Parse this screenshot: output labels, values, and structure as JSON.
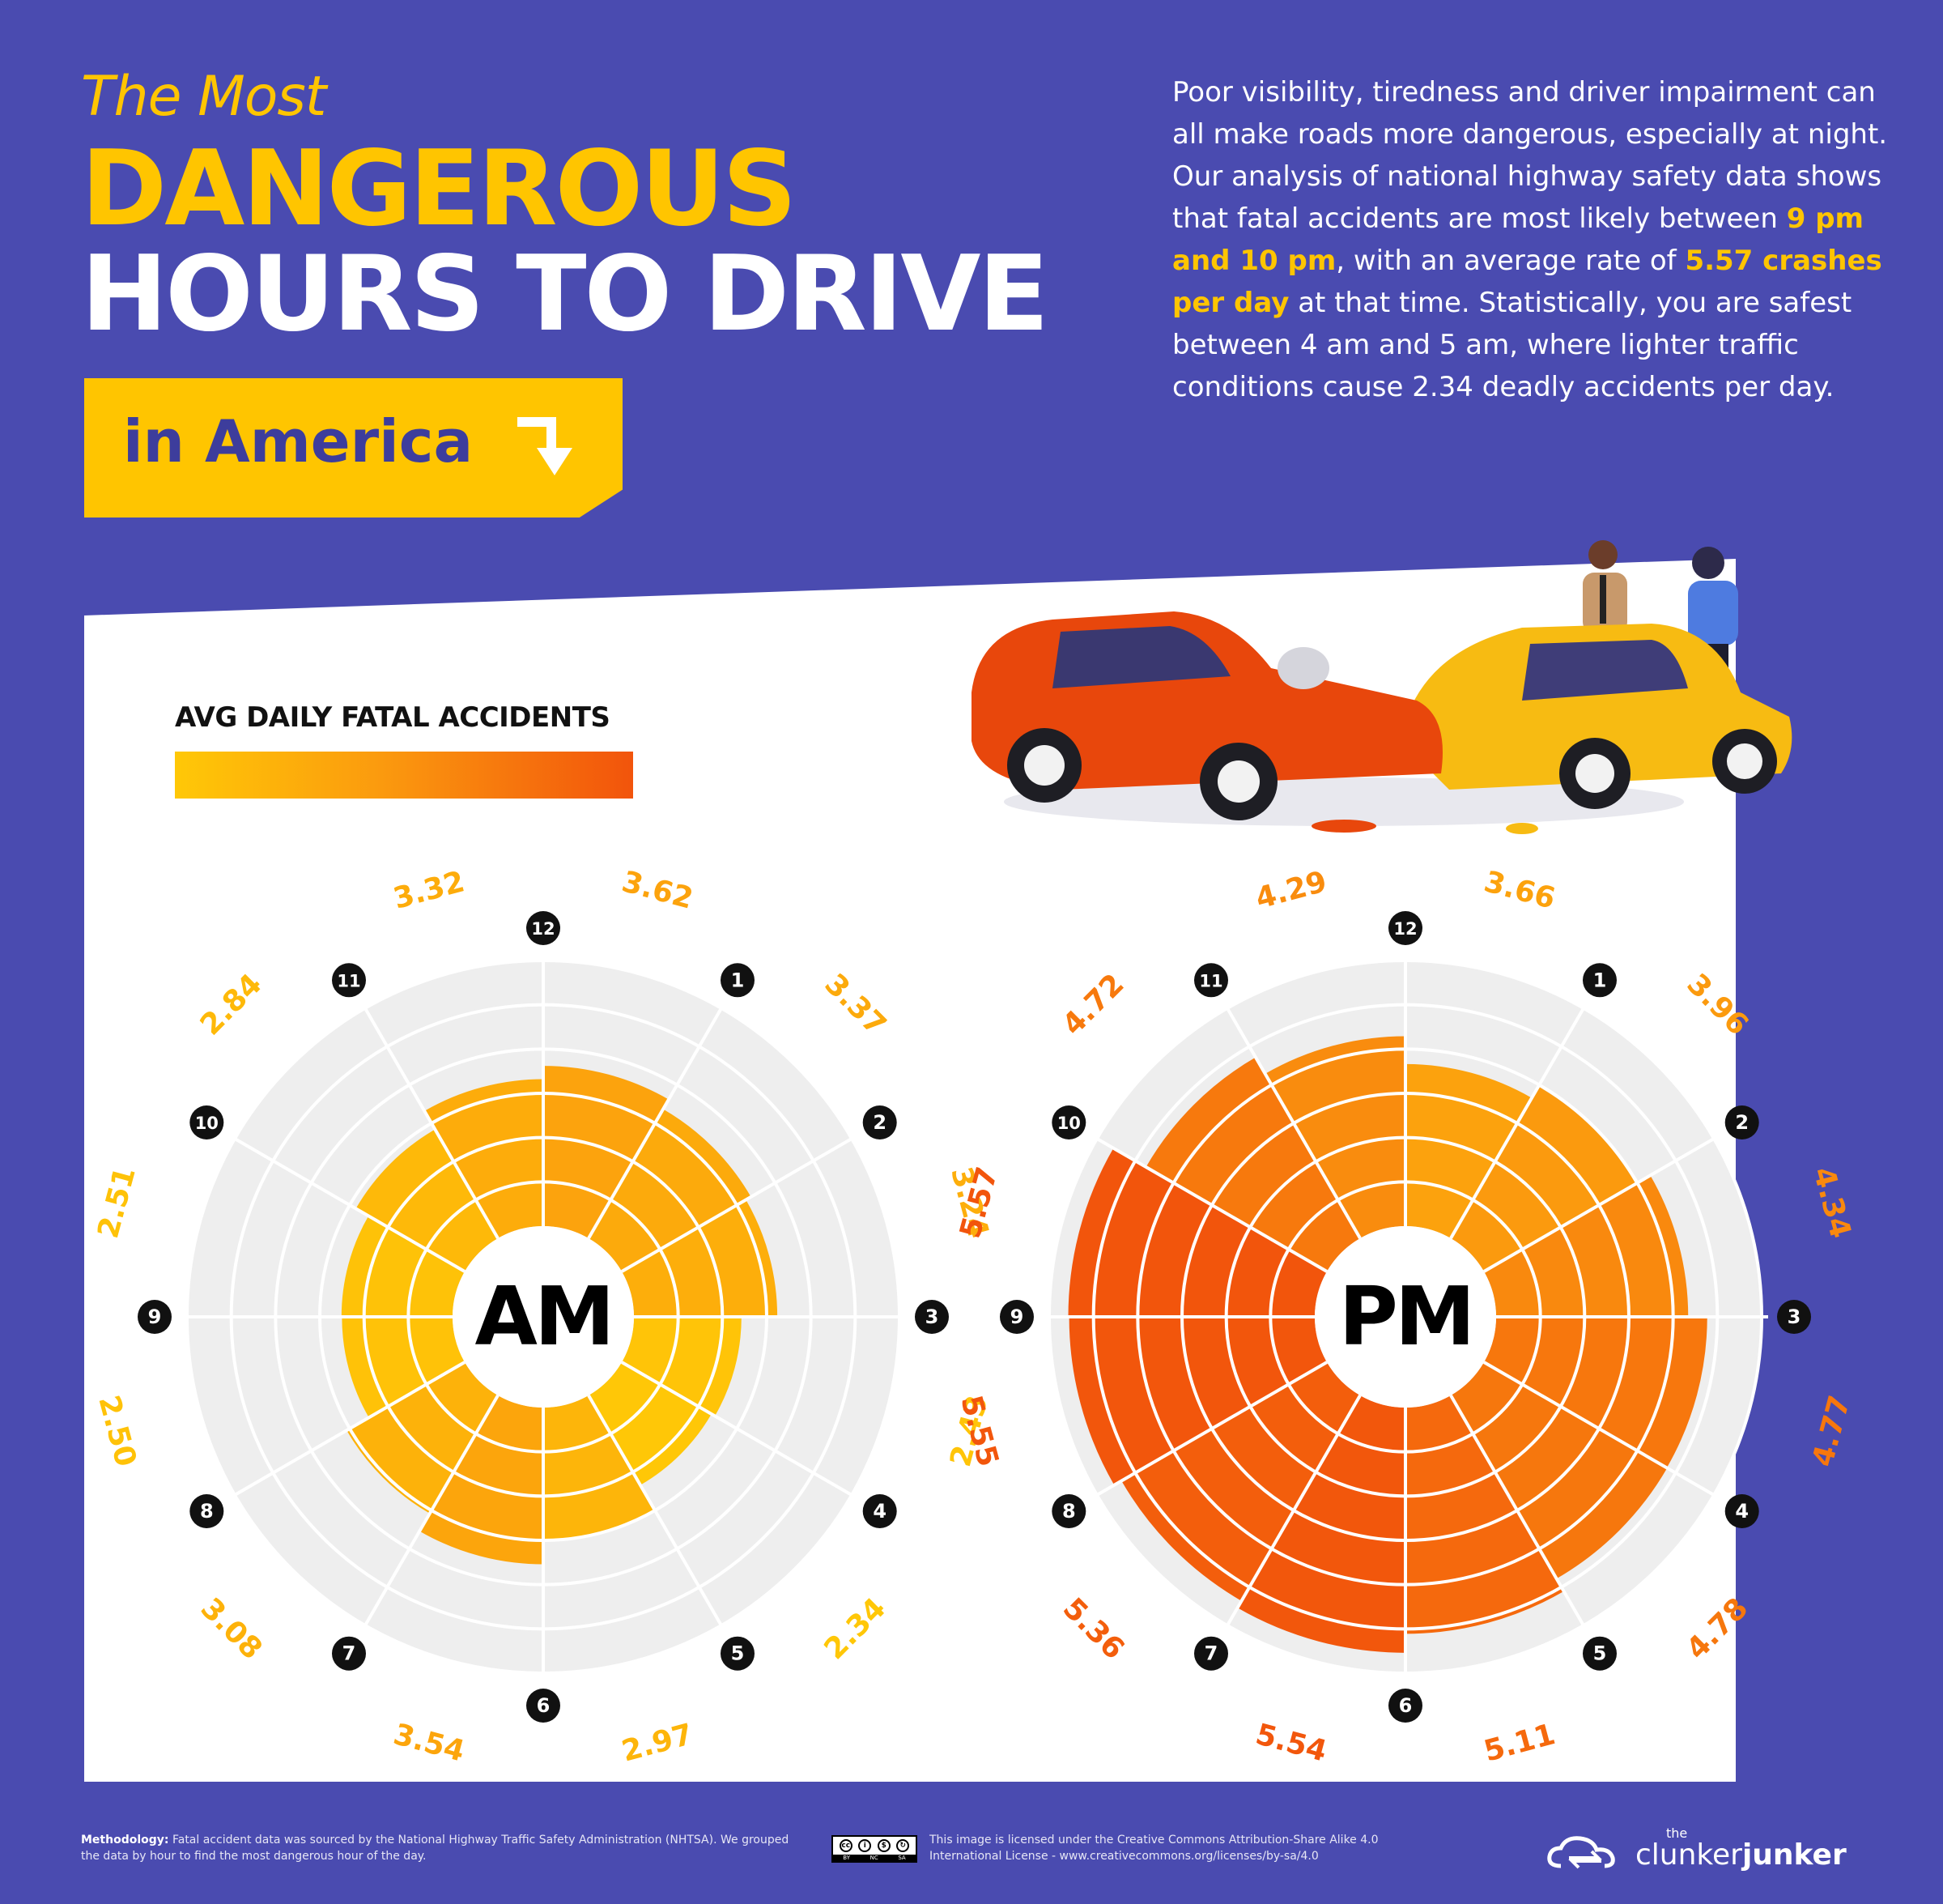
{
  "header": {
    "title_line1": "The Most",
    "title_line2": "DANGEROUS",
    "title_line3": "HOURS TO DRIVE",
    "tag_label": "in America",
    "intro_part1": "Poor visibility, tiredness and driver impairment can all make roads more dangerous, especially at night. Our analysis of national highway safety data shows that fatal accidents are most likely between ",
    "intro_highlight1": "9 pm and 10 pm",
    "intro_part2": ", with an average rate of ",
    "intro_highlight2": "5.57 crashes per day",
    "intro_part3": " at that time. Statistically, you are safest between 4 am and 5 am, where lighter traffic conditions cause 2.34 deadly accidents per day."
  },
  "legend": {
    "title": "AVG DAILY FATAL ACCIDENTS",
    "gradient_colors": [
      "#ffc807",
      "#f2540c"
    ]
  },
  "chart_data": [
    {
      "type": "radial-bar",
      "center_label": "AM",
      "hour_labels": [
        "12",
        "1",
        "2",
        "3",
        "4",
        "5",
        "6",
        "7",
        "8",
        "9",
        "10",
        "11"
      ],
      "segments": [
        "12-1",
        "1-2",
        "2-3",
        "3-4",
        "4-5",
        "5-6",
        "6-7",
        "7-8",
        "8-9",
        "9-10",
        "10-11",
        "11-12"
      ],
      "values": [
        3.62,
        3.37,
        3.24,
        2.43,
        2.34,
        2.97,
        3.54,
        3.08,
        2.5,
        2.51,
        2.84,
        3.32
      ],
      "value_labels": [
        "3.62",
        "3.37",
        "3.24",
        "2.43",
        "2.34",
        "2.97",
        "3.54",
        "3.08",
        "2.50",
        "2.51",
        "2.84",
        "3.32"
      ],
      "rlim": [
        0,
        6
      ]
    },
    {
      "type": "radial-bar",
      "center_label": "PM",
      "hour_labels": [
        "12",
        "1",
        "2",
        "3",
        "4",
        "5",
        "6",
        "7",
        "8",
        "9",
        "10",
        "11"
      ],
      "segments": [
        "12-1",
        "1-2",
        "2-3",
        "3-4",
        "4-5",
        "5-6",
        "6-7",
        "7-8",
        "8-9",
        "9-10",
        "10-11",
        "11-12"
      ],
      "values": [
        3.66,
        3.96,
        4.34,
        4.77,
        4.78,
        5.11,
        5.54,
        5.36,
        5.55,
        5.57,
        4.72,
        4.29
      ],
      "value_labels": [
        "3.66",
        "3.96",
        "4.34",
        "4.77",
        "4.78",
        "5.11",
        "5.54",
        "5.36",
        "5.55",
        "5.57",
        "4.72",
        "4.29"
      ],
      "rlim": [
        0,
        6
      ]
    }
  ],
  "footer": {
    "methodology_label": "Methodology:",
    "methodology_text": " Fatal accident data was sourced by the National Highway Traffic Safety Administration (NHTSA). We grouped the data by hour to find the most dangerous hour of the day.",
    "license_text": "This image is licensed under the Creative Commons Attribution-Share Alike 4.0 International License - www.creativecommons.org/licenses/by-sa/4.0",
    "cc_labels": [
      "BY",
      "NC",
      "SA"
    ],
    "brand_small": "the",
    "brand_light": "clunker",
    "brand_bold": "junker"
  }
}
